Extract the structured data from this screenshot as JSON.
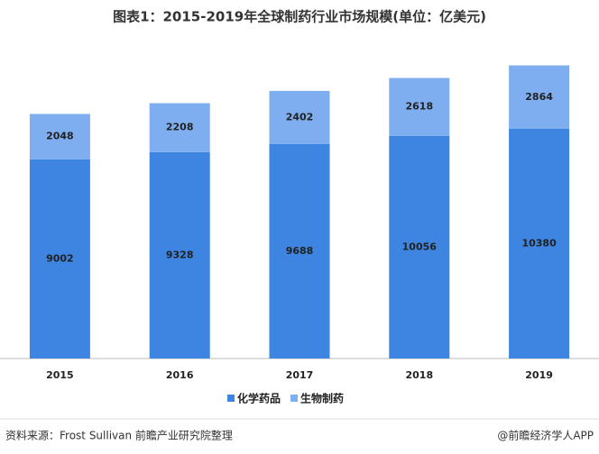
{
  "chart_data": {
    "type": "stacked_bar",
    "title": "图表1：2015-2019年全球制药行业市场规模(单位：亿美元)",
    "categories": [
      "2015",
      "2016",
      "2017",
      "2018",
      "2019"
    ],
    "series": [
      {
        "name": "化学药品",
        "color": "#3d85e0",
        "values": [
          9002,
          9328,
          9688,
          10056,
          10380
        ]
      },
      {
        "name": "生物制药",
        "color": "#7eaeef",
        "values": [
          2048,
          2208,
          2402,
          2618,
          2864
        ]
      }
    ],
    "ylim": [
      0,
      14000
    ],
    "source": "资料来源：Frost Sullivan   前瞻产业研究院整理",
    "credit": "@前瞻经济学人APP"
  }
}
